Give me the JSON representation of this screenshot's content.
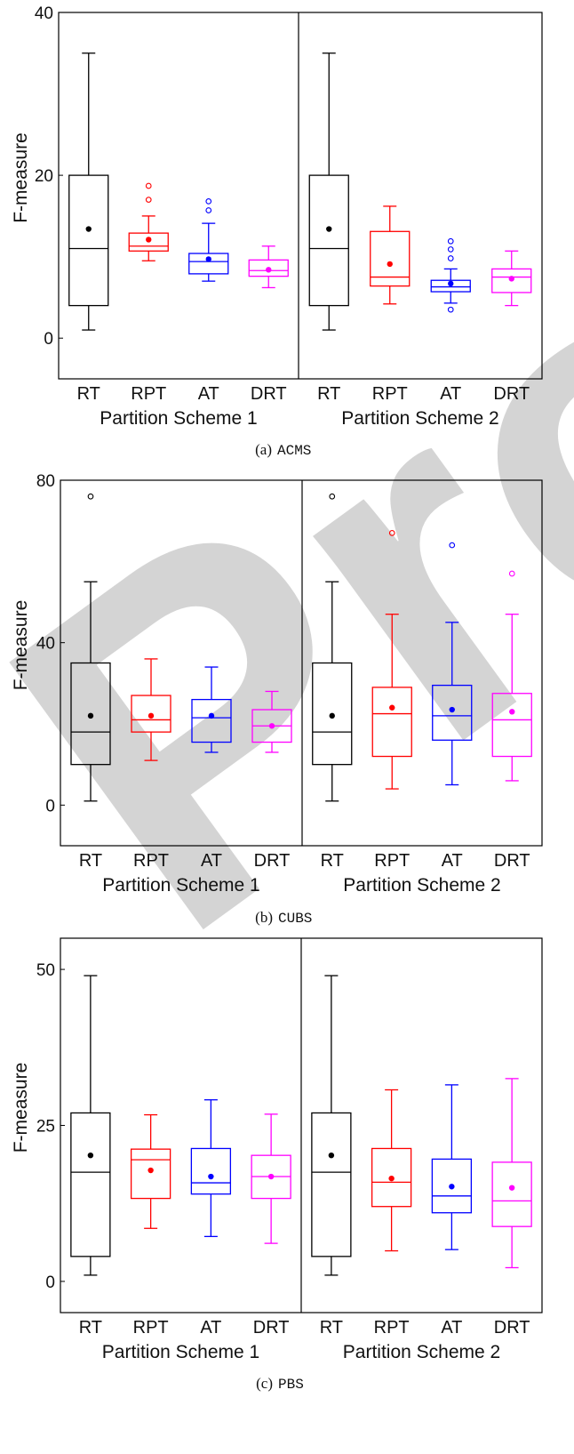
{
  "watermark": "Proof",
  "chart_data": [
    {
      "type": "box",
      "caption_label": "(a)",
      "caption_name": "ACMS",
      "ylabel": "F-measure",
      "ylim": [
        -5,
        40
      ],
      "yticks": [
        0,
        20,
        40
      ],
      "groups": [
        "Partition Scheme 1",
        "Partition Scheme 2"
      ],
      "categories": [
        "RT",
        "RPT",
        "AT",
        "DRT"
      ],
      "colors": [
        "#000000",
        "#ff0000",
        "#0000ff",
        "#ff00ff"
      ],
      "boxes": [
        {
          "group": "Partition Scheme 1",
          "cat": "RT",
          "min": 1,
          "q1": 4,
          "median": 11,
          "q3": 20,
          "max": 35,
          "mean": 13.4,
          "outliers": []
        },
        {
          "group": "Partition Scheme 1",
          "cat": "RPT",
          "min": 9.5,
          "q1": 10.7,
          "median": 11.3,
          "q3": 12.9,
          "max": 15,
          "mean": 12.1,
          "outliers": [
            17,
            18.7
          ]
        },
        {
          "group": "Partition Scheme 1",
          "cat": "AT",
          "min": 7,
          "q1": 7.9,
          "median": 9.4,
          "q3": 10.4,
          "max": 14.1,
          "mean": 9.7,
          "outliers": [
            15.7,
            16.8
          ]
        },
        {
          "group": "Partition Scheme 1",
          "cat": "DRT",
          "min": 6.2,
          "q1": 7.6,
          "median": 8.3,
          "q3": 9.6,
          "max": 11.3,
          "mean": 8.4,
          "outliers": []
        },
        {
          "group": "Partition Scheme 2",
          "cat": "RT",
          "min": 1,
          "q1": 4,
          "median": 11,
          "q3": 20,
          "max": 35,
          "mean": 13.4,
          "outliers": []
        },
        {
          "group": "Partition Scheme 2",
          "cat": "RPT",
          "min": 4.2,
          "q1": 6.4,
          "median": 7.5,
          "q3": 13.1,
          "max": 16.2,
          "mean": 9.1,
          "outliers": []
        },
        {
          "group": "Partition Scheme 2",
          "cat": "AT",
          "min": 4.3,
          "q1": 5.7,
          "median": 6.3,
          "q3": 7.1,
          "max": 8.5,
          "mean": 6.7,
          "outliers": [
            3.5,
            9.8,
            10.9,
            11.9
          ]
        },
        {
          "group": "Partition Scheme 2",
          "cat": "DRT",
          "min": 4,
          "q1": 5.6,
          "median": 7.5,
          "q3": 8.5,
          "max": 10.7,
          "mean": 7.3,
          "outliers": []
        }
      ]
    },
    {
      "type": "box",
      "caption_label": "(b)",
      "caption_name": "CUBS",
      "ylabel": "F-measure",
      "ylim": [
        -10,
        80
      ],
      "yticks": [
        0,
        40,
        80
      ],
      "groups": [
        "Partition Scheme 1",
        "Partition Scheme 2"
      ],
      "categories": [
        "RT",
        "RPT",
        "AT",
        "DRT"
      ],
      "colors": [
        "#000000",
        "#ff0000",
        "#0000ff",
        "#ff00ff"
      ],
      "boxes": [
        {
          "group": "Partition Scheme 1",
          "cat": "RT",
          "min": 1,
          "q1": 10,
          "median": 18,
          "q3": 35,
          "max": 55,
          "mean": 22,
          "outliers": [
            76
          ]
        },
        {
          "group": "Partition Scheme 1",
          "cat": "RPT",
          "min": 11,
          "q1": 18,
          "median": 21,
          "q3": 27,
          "max": 36,
          "mean": 22,
          "outliers": []
        },
        {
          "group": "Partition Scheme 1",
          "cat": "AT",
          "min": 13,
          "q1": 15.5,
          "median": 21.5,
          "q3": 26,
          "max": 34,
          "mean": 22,
          "outliers": []
        },
        {
          "group": "Partition Scheme 1",
          "cat": "DRT",
          "min": 13,
          "q1": 15.5,
          "median": 19.5,
          "q3": 23.5,
          "max": 28,
          "mean": 19.5,
          "outliers": []
        },
        {
          "group": "Partition Scheme 2",
          "cat": "RT",
          "min": 1,
          "q1": 10,
          "median": 18,
          "q3": 35,
          "max": 55,
          "mean": 22,
          "outliers": [
            76
          ]
        },
        {
          "group": "Partition Scheme 2",
          "cat": "RPT",
          "min": 4,
          "q1": 12,
          "median": 22.5,
          "q3": 29,
          "max": 47,
          "mean": 24,
          "outliers": [
            67
          ]
        },
        {
          "group": "Partition Scheme 2",
          "cat": "AT",
          "min": 5,
          "q1": 16,
          "median": 22,
          "q3": 29.5,
          "max": 45,
          "mean": 23.5,
          "outliers": [
            64
          ]
        },
        {
          "group": "Partition Scheme 2",
          "cat": "DRT",
          "min": 6,
          "q1": 12,
          "median": 21,
          "q3": 27.5,
          "max": 47,
          "mean": 23,
          "outliers": [
            57
          ]
        }
      ]
    },
    {
      "type": "box",
      "caption_label": "(c)",
      "caption_name": "PBS",
      "ylabel": "F-measure",
      "ylim": [
        -5,
        55
      ],
      "yticks": [
        0,
        25,
        50
      ],
      "groups": [
        "Partition Scheme 1",
        "Partition Scheme 2"
      ],
      "categories": [
        "RT",
        "RPT",
        "AT",
        "DRT"
      ],
      "colors": [
        "#000000",
        "#ff0000",
        "#0000ff",
        "#ff00ff"
      ],
      "boxes": [
        {
          "group": "Partition Scheme 1",
          "cat": "RT",
          "min": 1,
          "q1": 4,
          "median": 17.5,
          "q3": 27,
          "max": 49,
          "mean": 20.2,
          "outliers": []
        },
        {
          "group": "Partition Scheme 1",
          "cat": "RPT",
          "min": 8.5,
          "q1": 13.3,
          "median": 19.5,
          "q3": 21.2,
          "max": 26.7,
          "mean": 17.8,
          "outliers": []
        },
        {
          "group": "Partition Scheme 1",
          "cat": "AT",
          "min": 7.2,
          "q1": 14,
          "median": 15.8,
          "q3": 21.3,
          "max": 29.1,
          "mean": 16.8,
          "outliers": []
        },
        {
          "group": "Partition Scheme 1",
          "cat": "DRT",
          "min": 6.1,
          "q1": 13.3,
          "median": 16.8,
          "q3": 20.2,
          "max": 26.8,
          "mean": 16.8,
          "outliers": []
        },
        {
          "group": "Partition Scheme 2",
          "cat": "RT",
          "min": 1,
          "q1": 4,
          "median": 17.5,
          "q3": 27,
          "max": 49,
          "mean": 20.2,
          "outliers": []
        },
        {
          "group": "Partition Scheme 2",
          "cat": "RPT",
          "min": 4.9,
          "q1": 12,
          "median": 15.9,
          "q3": 21.3,
          "max": 30.7,
          "mean": 16.5,
          "outliers": []
        },
        {
          "group": "Partition Scheme 2",
          "cat": "AT",
          "min": 5.1,
          "q1": 11,
          "median": 13.7,
          "q3": 19.6,
          "max": 31.5,
          "mean": 15.2,
          "outliers": []
        },
        {
          "group": "Partition Scheme 2",
          "cat": "DRT",
          "min": 2.2,
          "q1": 8.8,
          "median": 12.9,
          "q3": 19.1,
          "max": 32.5,
          "mean": 15,
          "outliers": []
        }
      ]
    }
  ]
}
